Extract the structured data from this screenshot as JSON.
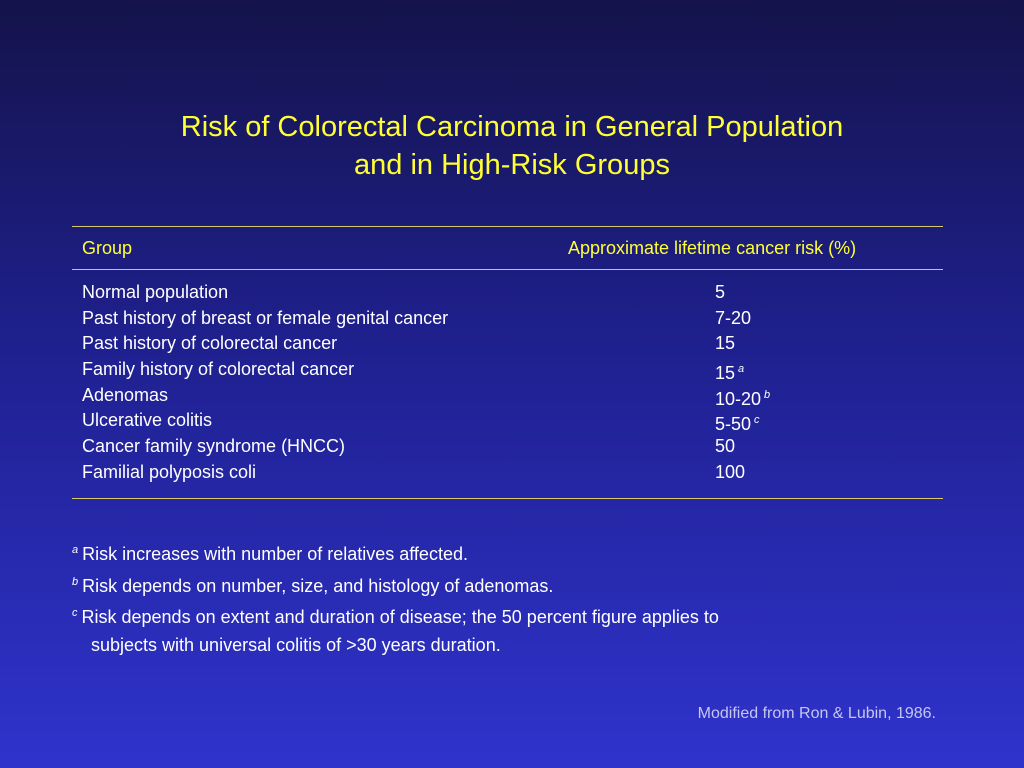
{
  "slide": {
    "title_line1": "Risk of Colorectal Carcinoma in General Population",
    "title_line2": "and in High-Risk Groups",
    "colors": {
      "title": "#ffff33",
      "rule": "#d8c86a",
      "text": "#ffffff",
      "source": "#c6c6f0"
    }
  },
  "table": {
    "headers": {
      "group": "Group",
      "risk": "Approximate lifetime cancer risk (%)"
    },
    "rows": [
      {
        "group": "Normal population",
        "risk": "5",
        "note": ""
      },
      {
        "group": "Past history of breast or female genital cancer",
        "risk": "7-20",
        "note": ""
      },
      {
        "group": "Past history of colorectal cancer",
        "risk": "15",
        "note": ""
      },
      {
        "group": "Family history of colorectal cancer",
        "risk": "15",
        "note": "a"
      },
      {
        "group": "Adenomas",
        "risk": "10-20",
        "note": "b"
      },
      {
        "group": "Ulcerative colitis",
        "risk": "5-50",
        "note": "c"
      },
      {
        "group": "Cancer family syndrome (HNCC)",
        "risk": "50",
        "note": ""
      },
      {
        "group": "Familial polyposis coli",
        "risk": "100",
        "note": ""
      }
    ]
  },
  "footnotes": [
    {
      "marker": "a",
      "text": "Risk increases with number of relatives affected."
    },
    {
      "marker": "b",
      "text": "Risk depends on number, size, and histology of adenomas."
    },
    {
      "marker": "c",
      "text": "Risk depends on extent and duration of disease; the 50 percent figure applies to"
    }
  ],
  "footnote_continuation": "subjects with universal colitis of >30 years duration.",
  "source": "Modified from Ron & Lubin, 1986."
}
